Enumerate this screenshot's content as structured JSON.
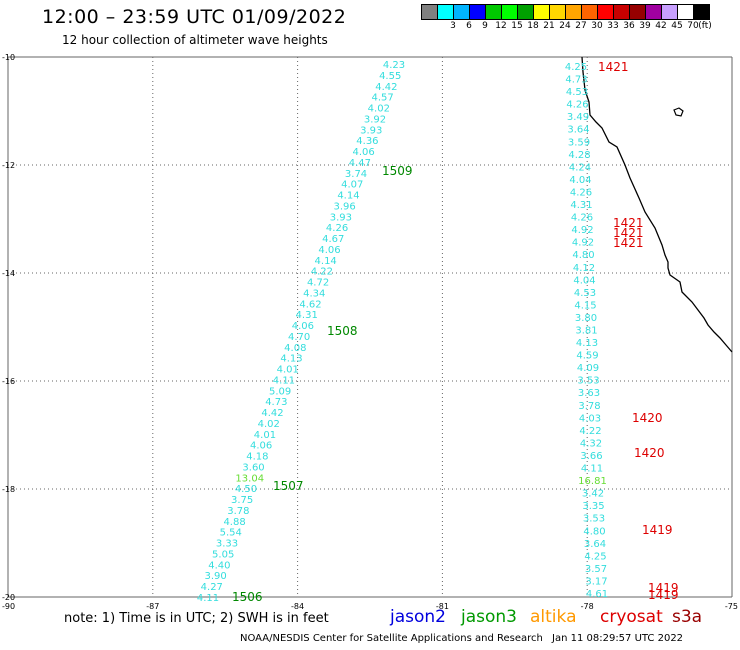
{
  "header": {
    "title": "12:00 – 23:59 UTC 01/09/2022",
    "subtitle": "12 hour collection of altimeter wave heights"
  },
  "legend": {
    "unit": "(ft)",
    "entries": [
      {
        "label": "",
        "color": "#808080"
      },
      {
        "label": "3",
        "color": "#00ffff"
      },
      {
        "label": "6",
        "color": "#00b4ff"
      },
      {
        "label": "9",
        "color": "#0000ff"
      },
      {
        "label": "12",
        "color": "#00c800"
      },
      {
        "label": "15",
        "color": "#00ff00"
      },
      {
        "label": "18",
        "color": "#00a000"
      },
      {
        "label": "21",
        "color": "#ffff00"
      },
      {
        "label": "24",
        "color": "#ffd700"
      },
      {
        "label": "27",
        "color": "#ffa500"
      },
      {
        "label": "30",
        "color": "#ff6400"
      },
      {
        "label": "33",
        "color": "#ff0000"
      },
      {
        "label": "36",
        "color": "#c80000"
      },
      {
        "label": "39",
        "color": "#960000"
      },
      {
        "label": "42",
        "color": "#a000a0"
      },
      {
        "label": "45",
        "color": "#c8a0ff"
      },
      {
        "label": "70",
        "color": "#ffffff"
      },
      {
        "label": "",
        "color": "#000000"
      }
    ]
  },
  "map": {
    "lon_range": [
      -90,
      -75
    ],
    "lat_range": [
      -20,
      -10
    ],
    "lon_ticks": [
      "-90",
      "-87",
      "-84",
      "-81",
      "-78",
      "-75"
    ],
    "lat_ticks": [
      "-10",
      "-12",
      "-14",
      "-16",
      "-18",
      "-20"
    ],
    "colors": {
      "swh": "#33dddd",
      "swh_high": "#66dd33",
      "jason3_pass": "#008800",
      "cryosat_pass": "#dd0000",
      "coast": "#000000",
      "grid": "#666666"
    },
    "west_track": {
      "swh": [
        "4.23",
        "4.55",
        "4.42",
        "4.57",
        "4.02",
        "3.92",
        "3.93",
        "4.36",
        "4.06",
        "4.47",
        "3.74",
        "4.07",
        "4.14",
        "3.96",
        "3.93",
        "4.26",
        "4.67",
        "4.06",
        "4.14",
        "4.22",
        "4.72",
        "4.34",
        "4.62",
        "4.31",
        "4.06",
        "4.70",
        "4.08",
        "4.13",
        "4.01",
        "4.11",
        "5.09",
        "4.73",
        "4.42",
        "4.02",
        "4.01",
        "4.06",
        "4.18",
        "3.60",
        "13.04",
        "4.50",
        "3.75",
        "3.78",
        "4.88",
        "5.54",
        "3.33",
        "5.05",
        "4.40",
        "3.90",
        "4.27",
        "4.11"
      ],
      "pass_labels": [
        "1509",
        "1508",
        "1507",
        "1506"
      ]
    },
    "east_track": {
      "swh": [
        "4.25",
        "4.73",
        "4.53",
        "4.26",
        "3.49",
        "3.64",
        "3.59",
        "4.28",
        "4.24",
        "4.04",
        "4.26",
        "4.31",
        "4.26",
        "4.92",
        "4.92",
        "4.80",
        "4.12",
        "4.04",
        "4.53",
        "4.15",
        "3.80",
        "3.81",
        "4.13",
        "4.59",
        "4.09",
        "3.53",
        "3.63",
        "3.78",
        "4.03",
        "4.22",
        "4.32",
        "3.66",
        "4.11",
        "16.81",
        "3.42",
        "3.35",
        "3.53",
        "4.80",
        "3.64",
        "4.25",
        "3.57",
        "3.17",
        "4.61"
      ],
      "pass_labels": [
        "1421",
        "1421",
        "1421",
        "1421",
        "1420",
        "1420",
        "1419",
        "1419",
        "1419"
      ]
    }
  },
  "footer": {
    "note": "note: 1) Time is in UTC; 2) SWH is in feet",
    "missions": [
      {
        "name": "jason2",
        "color": "#0000dd"
      },
      {
        "name": "jason3",
        "color": "#009900"
      },
      {
        "name": "altika",
        "color": "#ff9900"
      },
      {
        "name": "cryosat",
        "color": "#dd0000"
      },
      {
        "name": "s3a",
        "color": "#990000"
      }
    ],
    "credit": "NOAA/NESDIS Center for Satellite Applications and Research",
    "timestamp": "Jan 11 08:29:57 UTC 2022"
  }
}
